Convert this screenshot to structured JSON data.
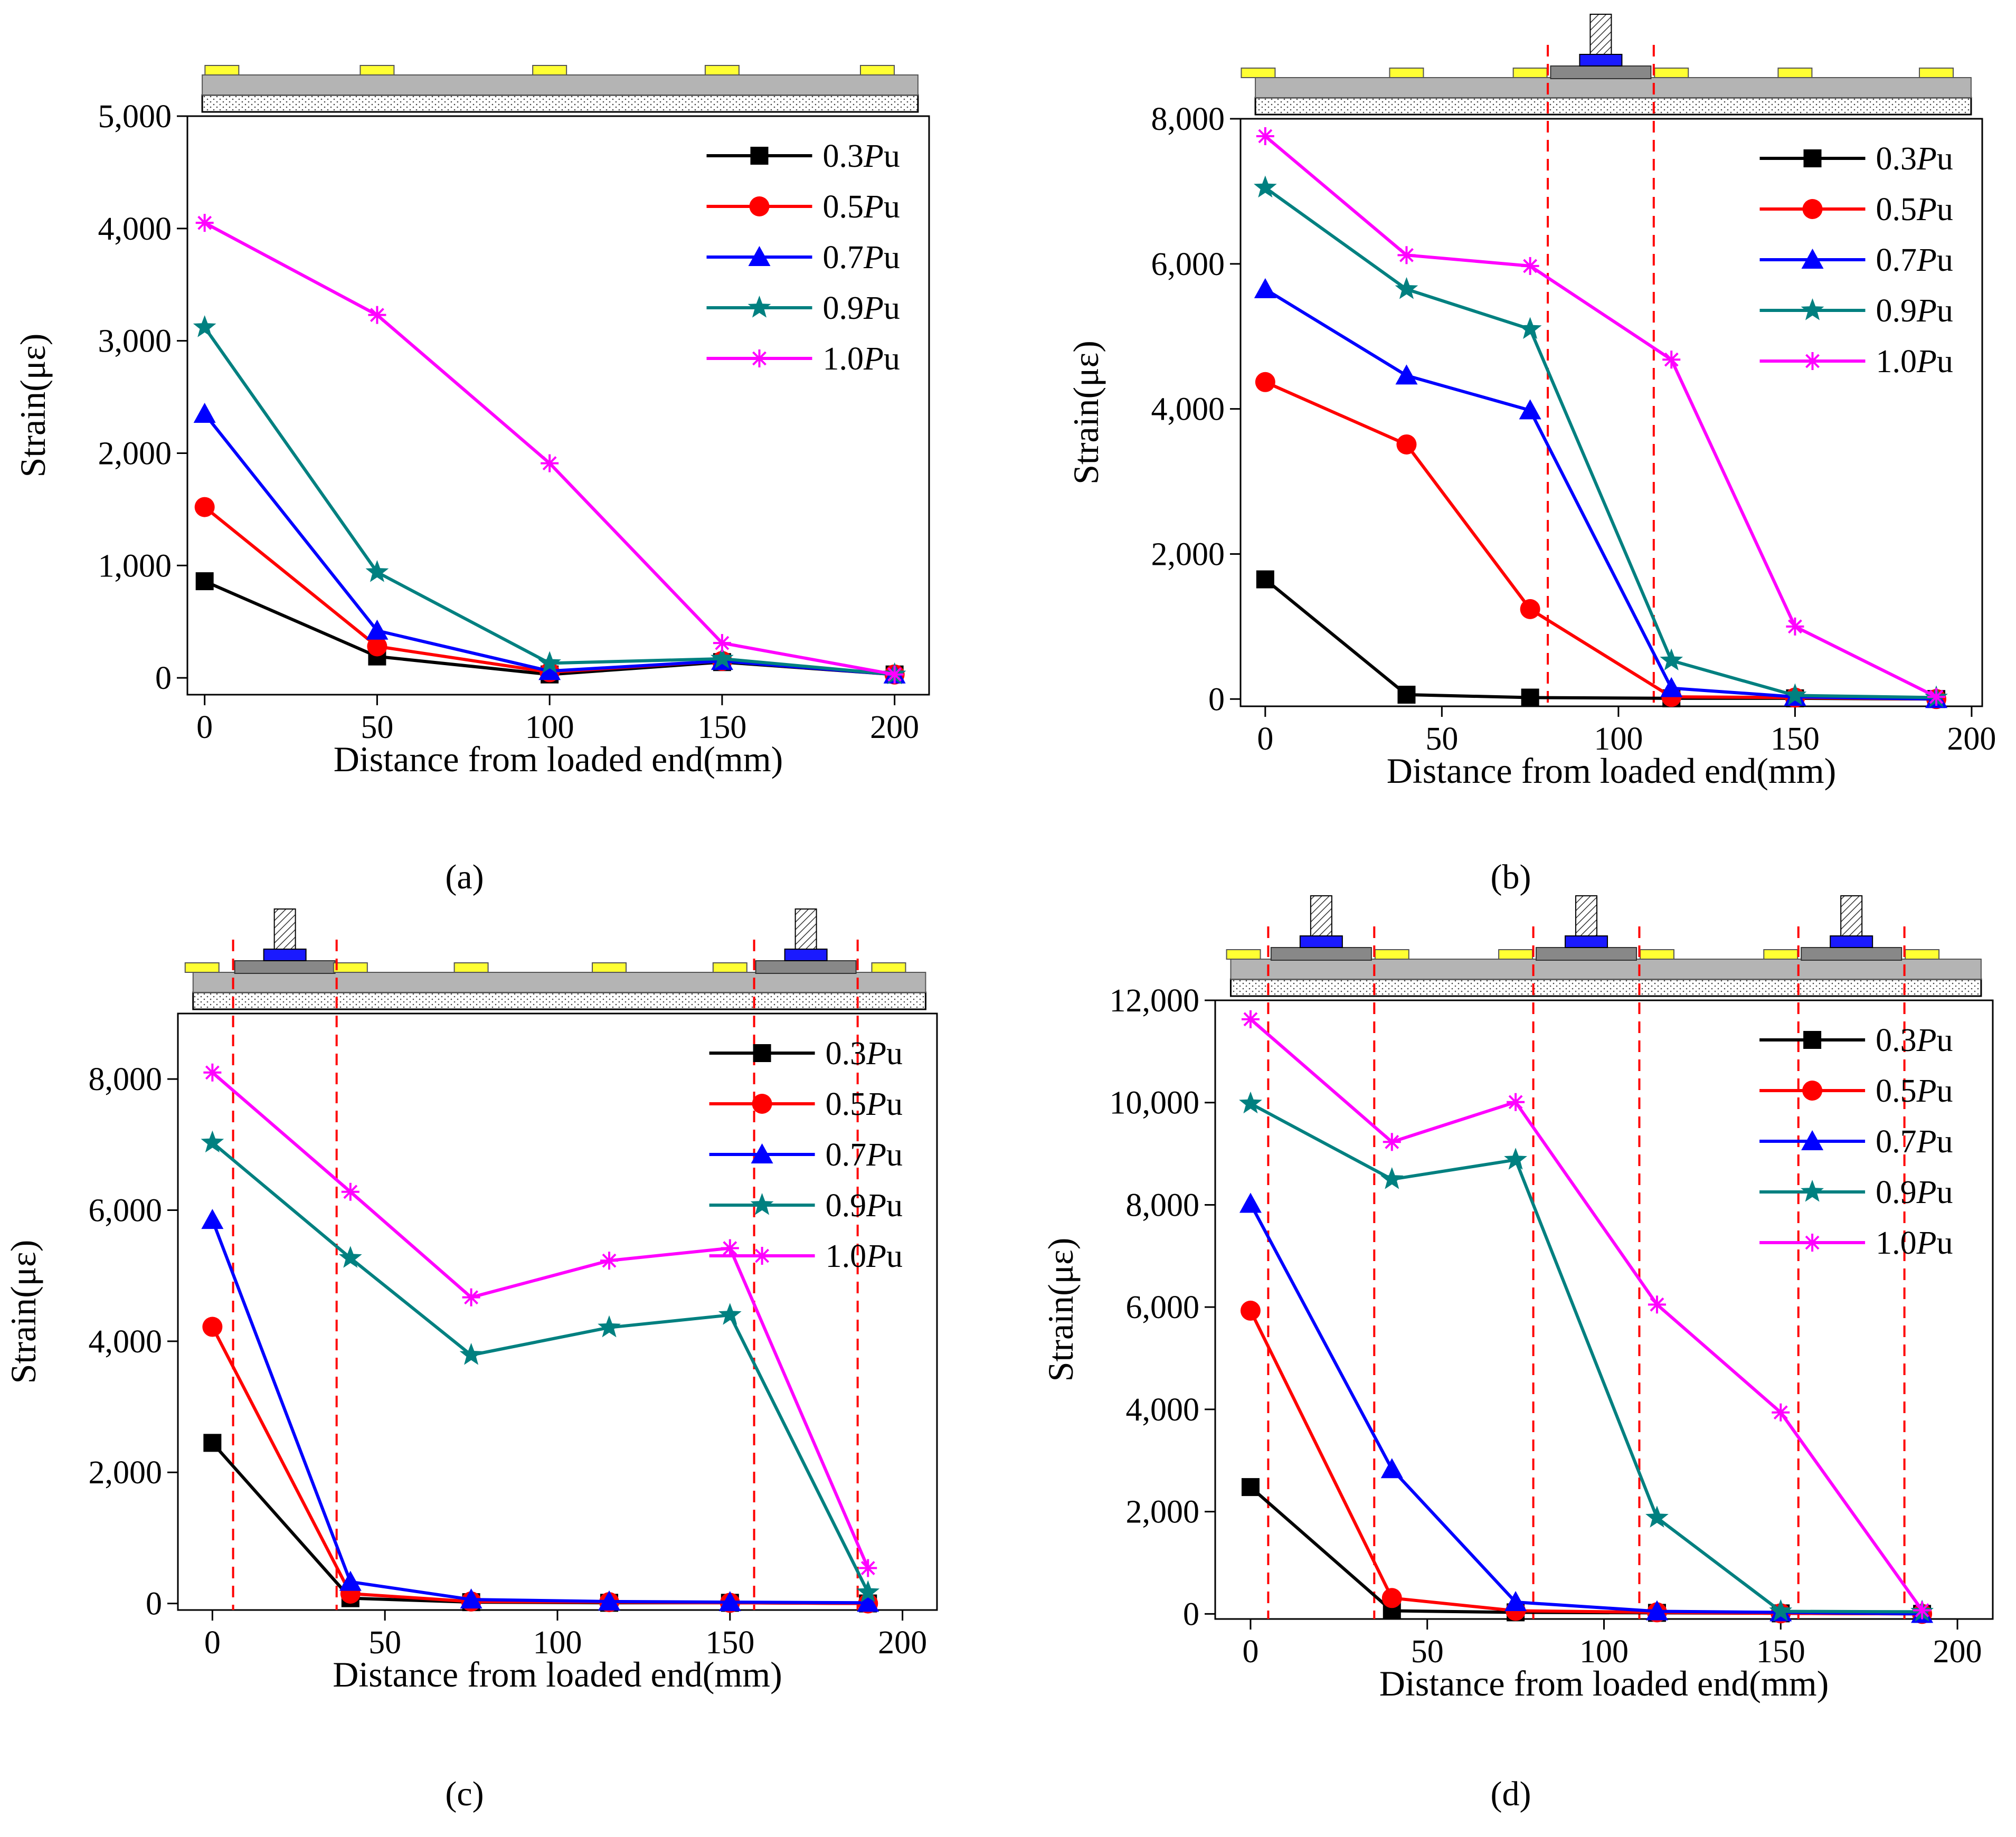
{
  "figure": {
    "panels": [
      "(a)",
      "(b)",
      "(c)",
      "(d)"
    ]
  },
  "colors": {
    "series": [
      "#000000",
      "#ff0000",
      "#0000ff",
      "#008080",
      "#ff00ff"
    ],
    "guide": "#ff0000",
    "plate": "#ffff33",
    "beam_dark": "#888888",
    "beam_light": "#b4b4b4",
    "anchor": "#1a1aff"
  },
  "chart_data": [
    {
      "panel": "(a)",
      "type": "line",
      "xlabel": "Distance from loaded end(mm)",
      "ylabel": "Strain(με)",
      "xlim": [
        -5,
        210
      ],
      "ylim": [
        -150,
        5000
      ],
      "xticks": [
        0,
        50,
        100,
        150,
        200
      ],
      "xtick_labels": [
        "0",
        "50",
        "100",
        "150",
        "200"
      ],
      "yticks": [
        0,
        1000,
        2000,
        3000,
        4000,
        5000
      ],
      "ytick_labels": [
        "0",
        "1,000",
        "2,000",
        "3,000",
        "4,000",
        "5,000"
      ],
      "x": [
        0,
        50,
        100,
        150,
        200
      ],
      "guides_x": [],
      "anchors_x": [],
      "plates_x": [
        5,
        50,
        100,
        150,
        195
      ],
      "legend_position": "top-right",
      "series": [
        {
          "name": "0.3Pu",
          "marker": "square",
          "values": [
            860,
            190,
            30,
            140,
            30
          ]
        },
        {
          "name": "0.5Pu",
          "marker": "circle",
          "values": [
            1520,
            280,
            50,
            150,
            30
          ]
        },
        {
          "name": "0.7Pu",
          "marker": "triangle",
          "values": [
            2350,
            420,
            60,
            150,
            30
          ]
        },
        {
          "name": "0.9Pu",
          "marker": "star",
          "values": [
            3120,
            940,
            130,
            170,
            30
          ]
        },
        {
          "name": "1.0Pu",
          "marker": "asterisk",
          "values": [
            4050,
            3230,
            1910,
            310,
            30
          ]
        }
      ]
    },
    {
      "panel": "(b)",
      "type": "line",
      "xlabel": "Distance from loaded end(mm)",
      "ylabel": "Strain(με)",
      "xlim": [
        -7,
        203
      ],
      "ylim": [
        -100,
        8000
      ],
      "xticks": [
        0,
        50,
        100,
        150,
        200
      ],
      "xtick_labels": [
        "0",
        "50",
        "100",
        "150",
        "200"
      ],
      "yticks": [
        0,
        2000,
        4000,
        6000,
        8000
      ],
      "ytick_labels": [
        "0",
        "2,000",
        "4,000",
        "6,000",
        "8,000"
      ],
      "x": [
        0,
        40,
        75,
        115,
        150,
        190
      ],
      "guides_x": [
        80,
        110
      ],
      "anchors_x": [
        95
      ],
      "plates_x": [
        -2,
        40,
        75,
        115,
        150,
        190
      ],
      "legend_position": "top-right",
      "series": [
        {
          "name": "0.3Pu",
          "marker": "square",
          "values": [
            1650,
            60,
            20,
            10,
            10,
            0
          ]
        },
        {
          "name": "0.5Pu",
          "marker": "circle",
          "values": [
            4370,
            3510,
            1240,
            30,
            20,
            0
          ]
        },
        {
          "name": "0.7Pu",
          "marker": "triangle",
          "values": [
            5650,
            4460,
            3980,
            150,
            30,
            0
          ]
        },
        {
          "name": "0.9Pu",
          "marker": "star",
          "values": [
            7050,
            5650,
            5100,
            530,
            50,
            20
          ]
        },
        {
          "name": "1.0Pu",
          "marker": "asterisk",
          "values": [
            7760,
            6120,
            5970,
            4680,
            1000,
            30
          ]
        }
      ]
    },
    {
      "panel": "(c)",
      "type": "line",
      "xlabel": "Distance from loaded end(mm)",
      "ylabel": "Strain(με)",
      "xlim": [
        -10,
        210
      ],
      "ylim": [
        -100,
        9000
      ],
      "xticks": [
        0,
        50,
        100,
        150,
        200
      ],
      "xtick_labels": [
        "0",
        "50",
        "100",
        "150",
        "200"
      ],
      "yticks": [
        0,
        2000,
        4000,
        6000,
        8000
      ],
      "ytick_labels": [
        "0",
        "2,000",
        "4,000",
        "6,000",
        "8,000"
      ],
      "x": [
        0,
        40,
        75,
        115,
        150,
        190
      ],
      "guides_x": [
        6,
        36,
        157,
        187
      ],
      "anchors_x": [
        21,
        172
      ],
      "plates_x": [
        -3,
        40,
        75,
        115,
        150,
        196
      ],
      "legend_position": "top-right",
      "series": [
        {
          "name": "0.3Pu",
          "marker": "square",
          "values": [
            2450,
            80,
            20,
            10,
            10,
            0
          ]
        },
        {
          "name": "0.5Pu",
          "marker": "circle",
          "values": [
            4220,
            150,
            30,
            20,
            10,
            0
          ]
        },
        {
          "name": "0.7Pu",
          "marker": "triangle",
          "values": [
            5850,
            330,
            60,
            30,
            20,
            10
          ]
        },
        {
          "name": "0.9Pu",
          "marker": "star",
          "values": [
            7030,
            5270,
            3790,
            4210,
            4400,
            170
          ]
        },
        {
          "name": "1.0Pu",
          "marker": "asterisk",
          "values": [
            8100,
            6280,
            4670,
            5230,
            5420,
            540
          ]
        }
      ]
    },
    {
      "panel": "(d)",
      "type": "line",
      "xlabel": "Distance from loaded end(mm)",
      "ylabel": "Strain(με)",
      "xlim": [
        -10,
        210
      ],
      "ylim": [
        -100,
        12000
      ],
      "xticks": [
        0,
        50,
        100,
        150,
        200
      ],
      "xtick_labels": [
        "0",
        "50",
        "100",
        "150",
        "200"
      ],
      "yticks": [
        0,
        2000,
        4000,
        6000,
        8000,
        10000,
        12000
      ],
      "ytick_labels": [
        "0",
        "2,000",
        "4,000",
        "6,000",
        "8,000",
        "10,000",
        "12,000"
      ],
      "x": [
        0,
        40,
        75,
        115,
        150,
        190
      ],
      "guides_x": [
        5,
        35,
        80,
        110,
        155,
        185
      ],
      "anchors_x": [
        20,
        95,
        170
      ],
      "plates_x": [
        -2,
        40,
        75,
        115,
        150,
        190
      ],
      "legend_position": "top-right",
      "series": [
        {
          "name": "0.3Pu",
          "marker": "square",
          "values": [
            2480,
            60,
            30,
            20,
            10,
            0
          ]
        },
        {
          "name": "0.5Pu",
          "marker": "circle",
          "values": [
            5930,
            310,
            60,
            30,
            10,
            0
          ]
        },
        {
          "name": "0.7Pu",
          "marker": "triangle",
          "values": [
            8020,
            2830,
            230,
            50,
            30,
            0
          ]
        },
        {
          "name": "0.9Pu",
          "marker": "star",
          "values": [
            9980,
            8500,
            8880,
            1880,
            50,
            40
          ]
        },
        {
          "name": "1.0Pu",
          "marker": "asterisk",
          "values": [
            11630,
            9230,
            10010,
            6050,
            3940,
            70
          ]
        }
      ]
    }
  ]
}
